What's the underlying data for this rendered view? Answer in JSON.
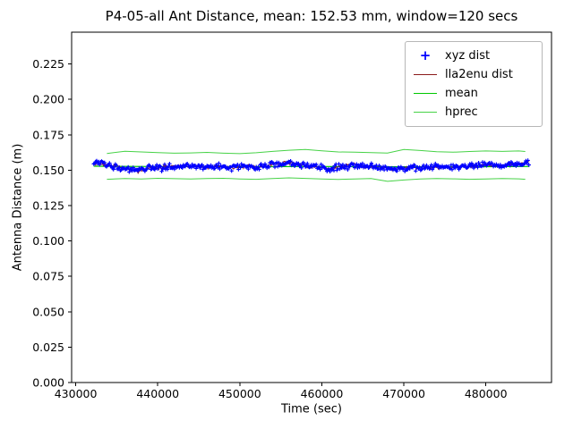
{
  "chart_data": {
    "type": "scatter+line",
    "title": "P4-05-all Ant Distance, mean: 152.53 mm, window=120 secs",
    "xlabel": "Time (sec)",
    "ylabel": "Antenna Distance (m)",
    "xlim": [
      429500,
      488000
    ],
    "ylim": [
      0,
      0.2475
    ],
    "grid": false,
    "legend_position": "upper right",
    "x_ticks": [
      {
        "v": 430000,
        "label": "430000"
      },
      {
        "v": 440000,
        "label": "440000"
      },
      {
        "v": 450000,
        "label": "450000"
      },
      {
        "v": 460000,
        "label": "460000"
      },
      {
        "v": 470000,
        "label": "470000"
      },
      {
        "v": 480000,
        "label": "480000"
      }
    ],
    "y_ticks": [
      {
        "v": 0.0,
        "label": "0.000"
      },
      {
        "v": 0.025,
        "label": "0.025"
      },
      {
        "v": 0.05,
        "label": "0.050"
      },
      {
        "v": 0.075,
        "label": "0.075"
      },
      {
        "v": 0.1,
        "label": "0.100"
      },
      {
        "v": 0.125,
        "label": "0.125"
      },
      {
        "v": 0.15,
        "label": "0.150"
      },
      {
        "v": 0.175,
        "label": "0.175"
      },
      {
        "v": 0.2,
        "label": "0.200"
      },
      {
        "v": 0.225,
        "label": "0.225"
      }
    ],
    "series": [
      {
        "name": "xyz dist",
        "type": "scatter",
        "marker": "plus",
        "color": "#0000ff"
      },
      {
        "name": "lla2enu dist",
        "type": "line",
        "color": "#8b1a1a"
      },
      {
        "name": "mean",
        "type": "line",
        "color": "#00c800"
      },
      {
        "name": "hprec",
        "type": "line",
        "color": "#46d246"
      }
    ],
    "center_track": {
      "x": [
        432200,
        433000,
        434000,
        435000,
        436000,
        437000,
        438000,
        439000,
        440000,
        441500,
        443000,
        444500,
        446000,
        447500,
        449000,
        450500,
        452000,
        453000,
        454000,
        455000,
        456000,
        457000,
        458000,
        459000,
        460000,
        461000,
        462000,
        463500,
        465000,
        466500,
        468000,
        469500,
        471000,
        472500,
        474000,
        475500,
        477000,
        478500,
        480000,
        481500,
        483000,
        484300,
        485300
      ],
      "y": [
        0.1553,
        0.1545,
        0.1537,
        0.1528,
        0.1515,
        0.1492,
        0.15,
        0.152,
        0.1515,
        0.1526,
        0.153,
        0.1526,
        0.1521,
        0.1526,
        0.1521,
        0.1526,
        0.1516,
        0.153,
        0.154,
        0.1549,
        0.1556,
        0.1546,
        0.1536,
        0.1526,
        0.1516,
        0.1509,
        0.1521,
        0.1536,
        0.1531,
        0.1526,
        0.1516,
        0.1511,
        0.1521,
        0.1516,
        0.1521,
        0.1521,
        0.1526,
        0.1531,
        0.1536,
        0.1531,
        0.1541,
        0.1546,
        0.1551
      ]
    },
    "mean_line": {
      "x": [
        432200,
        440000,
        450000,
        460000,
        470000,
        480000,
        485300
      ],
      "y": [
        0.1528,
        0.1526,
        0.1525,
        0.1526,
        0.1524,
        0.1525,
        0.1526
      ]
    },
    "hprec": {
      "x": [
        433800,
        436000,
        438000,
        440000,
        442000,
        444000,
        446000,
        448000,
        450000,
        452000,
        454000,
        456000,
        458000,
        460000,
        462000,
        464000,
        466000,
        468000,
        470000,
        472000,
        474000,
        476000,
        478000,
        480000,
        482000,
        484000,
        484800
      ],
      "upper": [
        0.1618,
        0.1634,
        0.1629,
        0.1624,
        0.162,
        0.1622,
        0.1626,
        0.162,
        0.1617,
        0.1623,
        0.1633,
        0.1641,
        0.1646,
        0.1637,
        0.1629,
        0.1627,
        0.1624,
        0.1621,
        0.1646,
        0.1639,
        0.163,
        0.1627,
        0.1632,
        0.1636,
        0.1633,
        0.1636,
        0.1632
      ],
      "lower": [
        0.1436,
        0.1441,
        0.1438,
        0.1443,
        0.144,
        0.1438,
        0.1441,
        0.1443,
        0.1438,
        0.1436,
        0.1441,
        0.1446,
        0.1442,
        0.1438,
        0.1435,
        0.1438,
        0.1441,
        0.1421,
        0.1431,
        0.1438,
        0.1441,
        0.1439,
        0.1436,
        0.1438,
        0.1441,
        0.1439,
        0.1436
      ]
    },
    "sampling": {
      "step": 120,
      "xyz_jitter": 0.0011,
      "lla_jitter": 0.0007,
      "seed": 7
    }
  }
}
